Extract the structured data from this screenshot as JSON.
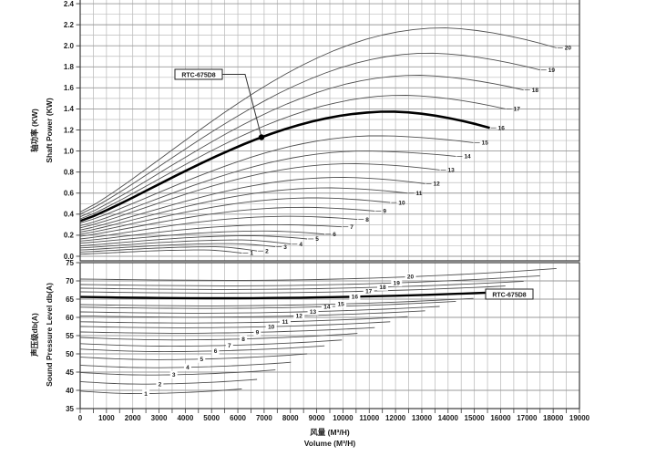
{
  "figure": {
    "background": "#ffffff",
    "grid_minor_color": "#bcbcbc",
    "grid_major_color": "#9a9a9a",
    "border_color": "#3a3a3a",
    "curve_color": "#4f4f4f",
    "highlight_color": "#000000",
    "model_label": "RTC-675D8"
  },
  "chart_data": [
    {
      "type": "line",
      "panel": "shaft-power",
      "ylabel_cn": "轴功率 (KW)",
      "ylabel_en": "Shaft Power (KW)",
      "xlabel_cn": "风量 (M³/H)",
      "xlabel_en": "Volume (M³/H)",
      "xlim": [
        0,
        19000
      ],
      "ylim": [
        0,
        2.4
      ],
      "grid": true,
      "legend_position": "inline-curve-end-labels",
      "x_ticks": [
        0,
        1000,
        2000,
        3000,
        4000,
        5000,
        6000,
        7000,
        8000,
        9000,
        10000,
        11000,
        12000,
        13000,
        14000,
        15000,
        16000,
        17000,
        18000,
        19000
      ],
      "y_ticks": [
        "0.0",
        "0.2",
        "0.4",
        "0.6",
        "0.8",
        "1.0",
        "1.2",
        "1.4",
        "1.6",
        "1.8",
        "2.0",
        "2.2",
        "2.4"
      ],
      "highlight_series": "16",
      "annotation": {
        "text": "RTC-675D8",
        "target_volume": 6900
      },
      "series": [
        {
          "name": "1",
          "start_kw": 0.02,
          "peak_kw": 0.06,
          "end_kw": 0.03,
          "end_volume": 6150
        },
        {
          "name": "2",
          "start_kw": 0.04,
          "peak_kw": 0.09,
          "end_kw": 0.05,
          "end_volume": 6730
        },
        {
          "name": "3",
          "start_kw": 0.06,
          "peak_kw": 0.12,
          "end_kw": 0.09,
          "end_volume": 7430
        },
        {
          "name": "4",
          "start_kw": 0.08,
          "peak_kw": 0.155,
          "end_kw": 0.115,
          "end_volume": 8020
        },
        {
          "name": "5",
          "start_kw": 0.1,
          "peak_kw": 0.195,
          "end_kw": 0.165,
          "end_volume": 8640
        },
        {
          "name": "6",
          "start_kw": 0.125,
          "peak_kw": 0.24,
          "end_kw": 0.21,
          "end_volume": 9300
        },
        {
          "name": "7",
          "start_kw": 0.145,
          "peak_kw": 0.3,
          "end_kw": 0.28,
          "end_volume": 9960
        },
        {
          "name": "8",
          "start_kw": 0.165,
          "peak_kw": 0.38,
          "end_kw": 0.35,
          "end_volume": 10550
        },
        {
          "name": "9",
          "start_kw": 0.19,
          "peak_kw": 0.465,
          "end_kw": 0.43,
          "end_volume": 11210
        },
        {
          "name": "10",
          "start_kw": 0.21,
          "peak_kw": 0.555,
          "end_kw": 0.51,
          "end_volume": 11800
        },
        {
          "name": "11",
          "start_kw": 0.23,
          "peak_kw": 0.65,
          "end_kw": 0.6,
          "end_volume": 12465
        },
        {
          "name": "12",
          "start_kw": 0.25,
          "peak_kw": 0.75,
          "end_kw": 0.69,
          "end_volume": 13125
        },
        {
          "name": "13",
          "start_kw": 0.27,
          "peak_kw": 0.88,
          "end_kw": 0.82,
          "end_volume": 13680
        },
        {
          "name": "14",
          "start_kw": 0.29,
          "peak_kw": 1.0,
          "end_kw": 0.95,
          "end_volume": 14300
        },
        {
          "name": "15",
          "start_kw": 0.315,
          "peak_kw": 1.145,
          "end_kw": 1.08,
          "end_volume": 14965
        },
        {
          "name": "16",
          "start_kw": 0.335,
          "peak_kw": 1.375,
          "end_kw": 1.22,
          "end_volume": 15590
        },
        {
          "name": "17",
          "start_kw": 0.355,
          "peak_kw": 1.53,
          "end_kw": 1.4,
          "end_volume": 16180
        },
        {
          "name": "18",
          "start_kw": 0.375,
          "peak_kw": 1.72,
          "end_kw": 1.58,
          "end_volume": 16875
        },
        {
          "name": "19",
          "start_kw": 0.4,
          "peak_kw": 1.93,
          "end_kw": 1.77,
          "end_volume": 17500
        },
        {
          "name": "20",
          "start_kw": 0.42,
          "peak_kw": 2.17,
          "end_kw": 1.98,
          "end_volume": 18125
        }
      ]
    },
    {
      "type": "line",
      "panel": "sound-pressure",
      "ylabel_cn": "声压级db(A)",
      "ylabel_en": "Sound Pressure Level db(A)",
      "xlabel_cn": "风量 (M³/H)",
      "xlabel_en": "Volume (M³/H)",
      "xlim": [
        0,
        19000
      ],
      "ylim": [
        35,
        75
      ],
      "grid": true,
      "legend_position": "inline-mid-curve-labels",
      "x_ticks": [
        0,
        1000,
        2000,
        3000,
        4000,
        5000,
        6000,
        7000,
        8000,
        9000,
        10000,
        11000,
        12000,
        13000,
        14000,
        15000,
        16000,
        17000,
        18000,
        19000
      ],
      "y_ticks": [
        "75",
        "70",
        "65",
        "60",
        "55",
        "50",
        "45",
        "40",
        "35"
      ],
      "highlight_series": "16",
      "annotation": {
        "text": "RTC-675D8",
        "at_end_of_series": "16"
      },
      "series": [
        {
          "name": "1",
          "start_db": 39.8,
          "end_db": 40.4,
          "end_volume": 6150,
          "label_volume": 2500
        },
        {
          "name": "2",
          "start_db": 42.4,
          "end_db": 43.0,
          "end_volume": 6730,
          "label_volume": 3030
        },
        {
          "name": "3",
          "start_db": 44.9,
          "end_db": 45.6,
          "end_volume": 7430,
          "label_volume": 3560
        },
        {
          "name": "4",
          "start_db": 46.9,
          "end_db": 47.7,
          "end_volume": 8020,
          "label_volume": 4090
        },
        {
          "name": "5",
          "start_db": 49.1,
          "end_db": 50.0,
          "end_volume": 8640,
          "label_volume": 4620
        },
        {
          "name": "6",
          "start_db": 51.3,
          "end_db": 52.2,
          "end_volume": 9300,
          "label_volume": 5150
        },
        {
          "name": "7",
          "start_db": 52.8,
          "end_db": 53.8,
          "end_volume": 9960,
          "label_volume": 5680
        },
        {
          "name": "8",
          "start_db": 54.5,
          "end_db": 55.6,
          "end_volume": 10550,
          "label_volume": 6210
        },
        {
          "name": "9",
          "start_db": 56.0,
          "end_db": 57.2,
          "end_volume": 11210,
          "label_volume": 6740
        },
        {
          "name": "10",
          "start_db": 57.5,
          "end_db": 58.8,
          "end_volume": 11800,
          "label_volume": 7270
        },
        {
          "name": "11",
          "start_db": 58.8,
          "end_db": 60.2,
          "end_volume": 12465,
          "label_volume": 7800
        },
        {
          "name": "12",
          "start_db": 60.4,
          "end_db": 61.8,
          "end_volume": 13125,
          "label_volume": 8330
        },
        {
          "name": "13",
          "start_db": 61.5,
          "end_db": 63.0,
          "end_volume": 13680,
          "label_volume": 8860
        },
        {
          "name": "14",
          "start_db": 62.8,
          "end_db": 64.4,
          "end_volume": 14300,
          "label_volume": 9390
        },
        {
          "name": "15",
          "start_db": 63.5,
          "end_db": 65.2,
          "end_volume": 14965,
          "label_volume": 9920
        },
        {
          "name": "16",
          "start_db": 65.6,
          "end_db": 66.8,
          "end_volume": 15590,
          "label_volume": 10450
        },
        {
          "name": "17",
          "start_db": 67.0,
          "end_db": 68.6,
          "end_volume": 16180,
          "label_volume": 10980
        },
        {
          "name": "18",
          "start_db": 68.0,
          "end_db": 69.9,
          "end_volume": 16875,
          "label_volume": 11510
        },
        {
          "name": "19",
          "start_db": 69.0,
          "end_db": 71.4,
          "end_volume": 17500,
          "label_volume": 12040
        },
        {
          "name": "20",
          "start_db": 70.5,
          "end_db": 73.4,
          "end_volume": 18125,
          "label_volume": 12570
        }
      ]
    }
  ]
}
